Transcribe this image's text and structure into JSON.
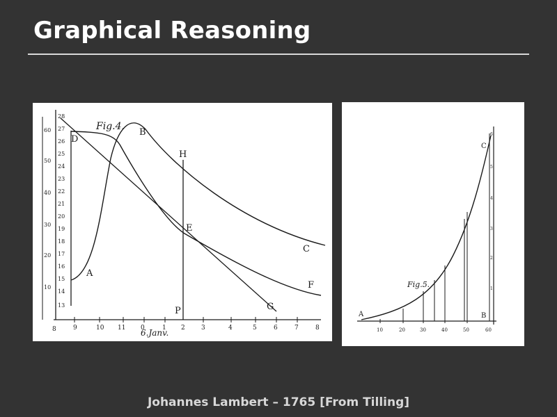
{
  "slide": {
    "title": "Graphical Reasoning",
    "caption": "Johannes Lambert – 1765 [From Tilling]"
  },
  "fig4": {
    "figure_label": "Fig.4.",
    "date_label": "6.Janv.",
    "curve_labels": [
      "A",
      "B",
      "C",
      "D",
      "E",
      "F",
      "G",
      "H",
      "P"
    ],
    "left_scale": [
      "60",
      "50",
      "40",
      "30",
      "20",
      "10"
    ],
    "inner_scale": [
      "28",
      "27",
      "26",
      "25",
      "24",
      "23",
      "22",
      "21",
      "20",
      "19",
      "18",
      "17",
      "16",
      "15",
      "14",
      "13"
    ],
    "x_ticks": [
      "8",
      "9",
      "10",
      "11",
      "0",
      "1",
      "2",
      "3",
      "4",
      "5",
      "6",
      "7",
      "8"
    ]
  },
  "fig5": {
    "figure_label": "Fig.5.",
    "point_labels": [
      "A",
      "B",
      "C"
    ],
    "x_ticks": [
      "10",
      "20",
      "30",
      "40",
      "50",
      "60"
    ],
    "right_scale": [
      "6",
      "5",
      "4",
      "3",
      "2",
      "1"
    ]
  }
}
